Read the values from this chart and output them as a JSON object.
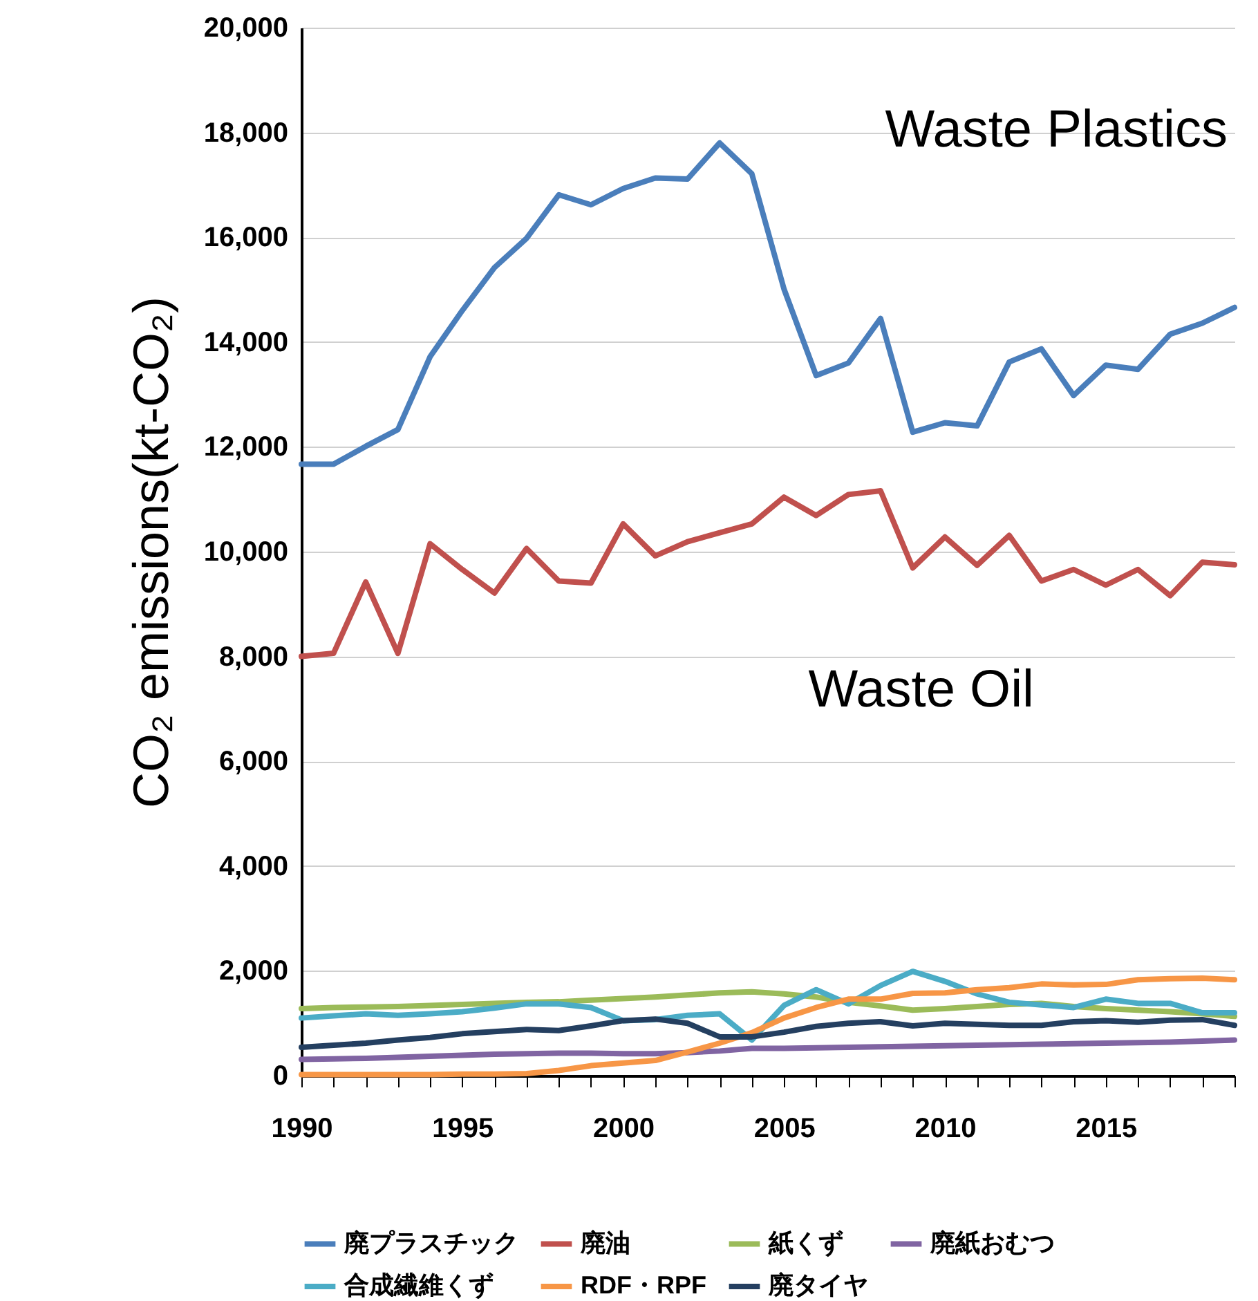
{
  "chart_data": {
    "type": "line",
    "ylabel": "CO₂ emissions(kt-CO₂)",
    "x": [
      1990,
      1991,
      1992,
      1993,
      1994,
      1995,
      1996,
      1997,
      1998,
      1999,
      2000,
      2001,
      2002,
      2003,
      2004,
      2005,
      2006,
      2007,
      2008,
      2009,
      2010,
      2011,
      2012,
      2013,
      2014,
      2015,
      2016,
      2017,
      2018,
      2019
    ],
    "xlim": [
      1990,
      2019
    ],
    "xticks": [
      1990,
      {
        "value": 1991,
        "label": null
      },
      {
        "value": 1992,
        "label": null
      },
      {
        "value": 1993,
        "label": null
      },
      {
        "value": 1994,
        "label": null
      },
      1995,
      {
        "value": 1996,
        "label": null
      },
      {
        "value": 1997,
        "label": null
      },
      {
        "value": 1998,
        "label": null
      },
      {
        "value": 1999,
        "label": null
      },
      2000,
      {
        "value": 2001,
        "label": null
      },
      {
        "value": 2002,
        "label": null
      },
      {
        "value": 2003,
        "label": null
      },
      {
        "value": 2004,
        "label": null
      },
      2005,
      {
        "value": 2006,
        "label": null
      },
      {
        "value": 2007,
        "label": null
      },
      {
        "value": 2008,
        "label": null
      },
      {
        "value": 2009,
        "label": null
      },
      2010,
      {
        "value": 2011,
        "label": null
      },
      {
        "value": 2012,
        "label": null
      },
      {
        "value": 2013,
        "label": null
      },
      {
        "value": 2014,
        "label": null
      },
      2015,
      {
        "value": 2016,
        "label": null
      },
      {
        "value": 2017,
        "label": null
      },
      {
        "value": 2018,
        "label": null
      },
      {
        "value": 2019,
        "label": null
      }
    ],
    "ylim": [
      0,
      20000
    ],
    "yticks": [
      0,
      {
        "value": 2000,
        "label": "2,000"
      },
      {
        "value": 4000,
        "label": "4,000"
      },
      {
        "value": 6000,
        "label": "6,000"
      },
      {
        "value": 8000,
        "label": "8,000"
      },
      {
        "value": 10000,
        "label": "10,000"
      },
      {
        "value": 12000,
        "label": "12,000"
      },
      {
        "value": 14000,
        "label": "14,000"
      },
      {
        "value": 16000,
        "label": "16,000"
      },
      {
        "value": 18000,
        "label": "18,000"
      },
      {
        "value": 20000,
        "label": "20,000"
      }
    ],
    "grid": "y",
    "legend": "bottom",
    "marker": "none",
    "line_style": "solid",
    "annotations": [
      "Waste Plastics",
      "Waste Oil"
    ],
    "series": [
      {
        "name": "廃プラスチック",
        "color": "#4a7ebb",
        "values": [
          11670,
          11670,
          12010,
          12330,
          13720,
          14600,
          15420,
          15980,
          16810,
          16620,
          16930,
          17130,
          17110,
          17800,
          17210,
          15010,
          13360,
          13600,
          14450,
          12280,
          12460,
          12400,
          13620,
          13870,
          12980,
          13560,
          13480,
          14150,
          14360,
          14660
        ]
      },
      {
        "name": "廃油",
        "color": "#c0504d",
        "values": [
          8000,
          8060,
          9420,
          8060,
          10150,
          9660,
          9210,
          10060,
          9440,
          9400,
          10530,
          9920,
          10190,
          10360,
          10530,
          11040,
          10690,
          11090,
          11160,
          9690,
          10280,
          9740,
          10310,
          9440,
          9660,
          9360,
          9660,
          9160,
          9800,
          9750
        ]
      },
      {
        "name": "紙くず",
        "color": "#9bbb59",
        "values": [
          1280,
          1300,
          1310,
          1320,
          1340,
          1360,
          1380,
          1400,
          1410,
          1440,
          1470,
          1500,
          1540,
          1580,
          1600,
          1560,
          1500,
          1400,
          1330,
          1250,
          1280,
          1320,
          1360,
          1380,
          1320,
          1280,
          1250,
          1220,
          1180,
          1130
        ]
      },
      {
        "name": "廃紙おむつ",
        "color": "#8064a2",
        "values": [
          310,
          320,
          330,
          350,
          370,
          390,
          410,
          420,
          430,
          430,
          420,
          420,
          440,
          470,
          520,
          520,
          530,
          540,
          550,
          560,
          570,
          580,
          590,
          600,
          610,
          620,
          630,
          640,
          660,
          680
        ]
      },
      {
        "name": "合成繊維くず",
        "color": "#4bacc6",
        "values": [
          1100,
          1140,
          1180,
          1150,
          1180,
          1220,
          1290,
          1370,
          1370,
          1300,
          1050,
          1070,
          1150,
          1180,
          680,
          1340,
          1640,
          1370,
          1720,
          1990,
          1800,
          1560,
          1400,
          1350,
          1300,
          1460,
          1380,
          1380,
          1200,
          1200
        ]
      },
      {
        "name": "RDF・RPF",
        "color": "#f79646",
        "values": [
          20,
          20,
          20,
          20,
          20,
          30,
          30,
          40,
          100,
          190,
          240,
          290,
          450,
          620,
          820,
          1100,
          1300,
          1460,
          1460,
          1570,
          1580,
          1640,
          1680,
          1750,
          1730,
          1740,
          1830,
          1850,
          1860,
          1830
        ]
      },
      {
        "name": "廃タイヤ",
        "color": "#243f60",
        "values": [
          540,
          580,
          620,
          680,
          730,
          800,
          840,
          880,
          860,
          950,
          1050,
          1080,
          1000,
          740,
          740,
          830,
          940,
          1000,
          1030,
          950,
          1000,
          980,
          960,
          960,
          1030,
          1050,
          1020,
          1060,
          1070,
          960
        ]
      }
    ]
  }
}
